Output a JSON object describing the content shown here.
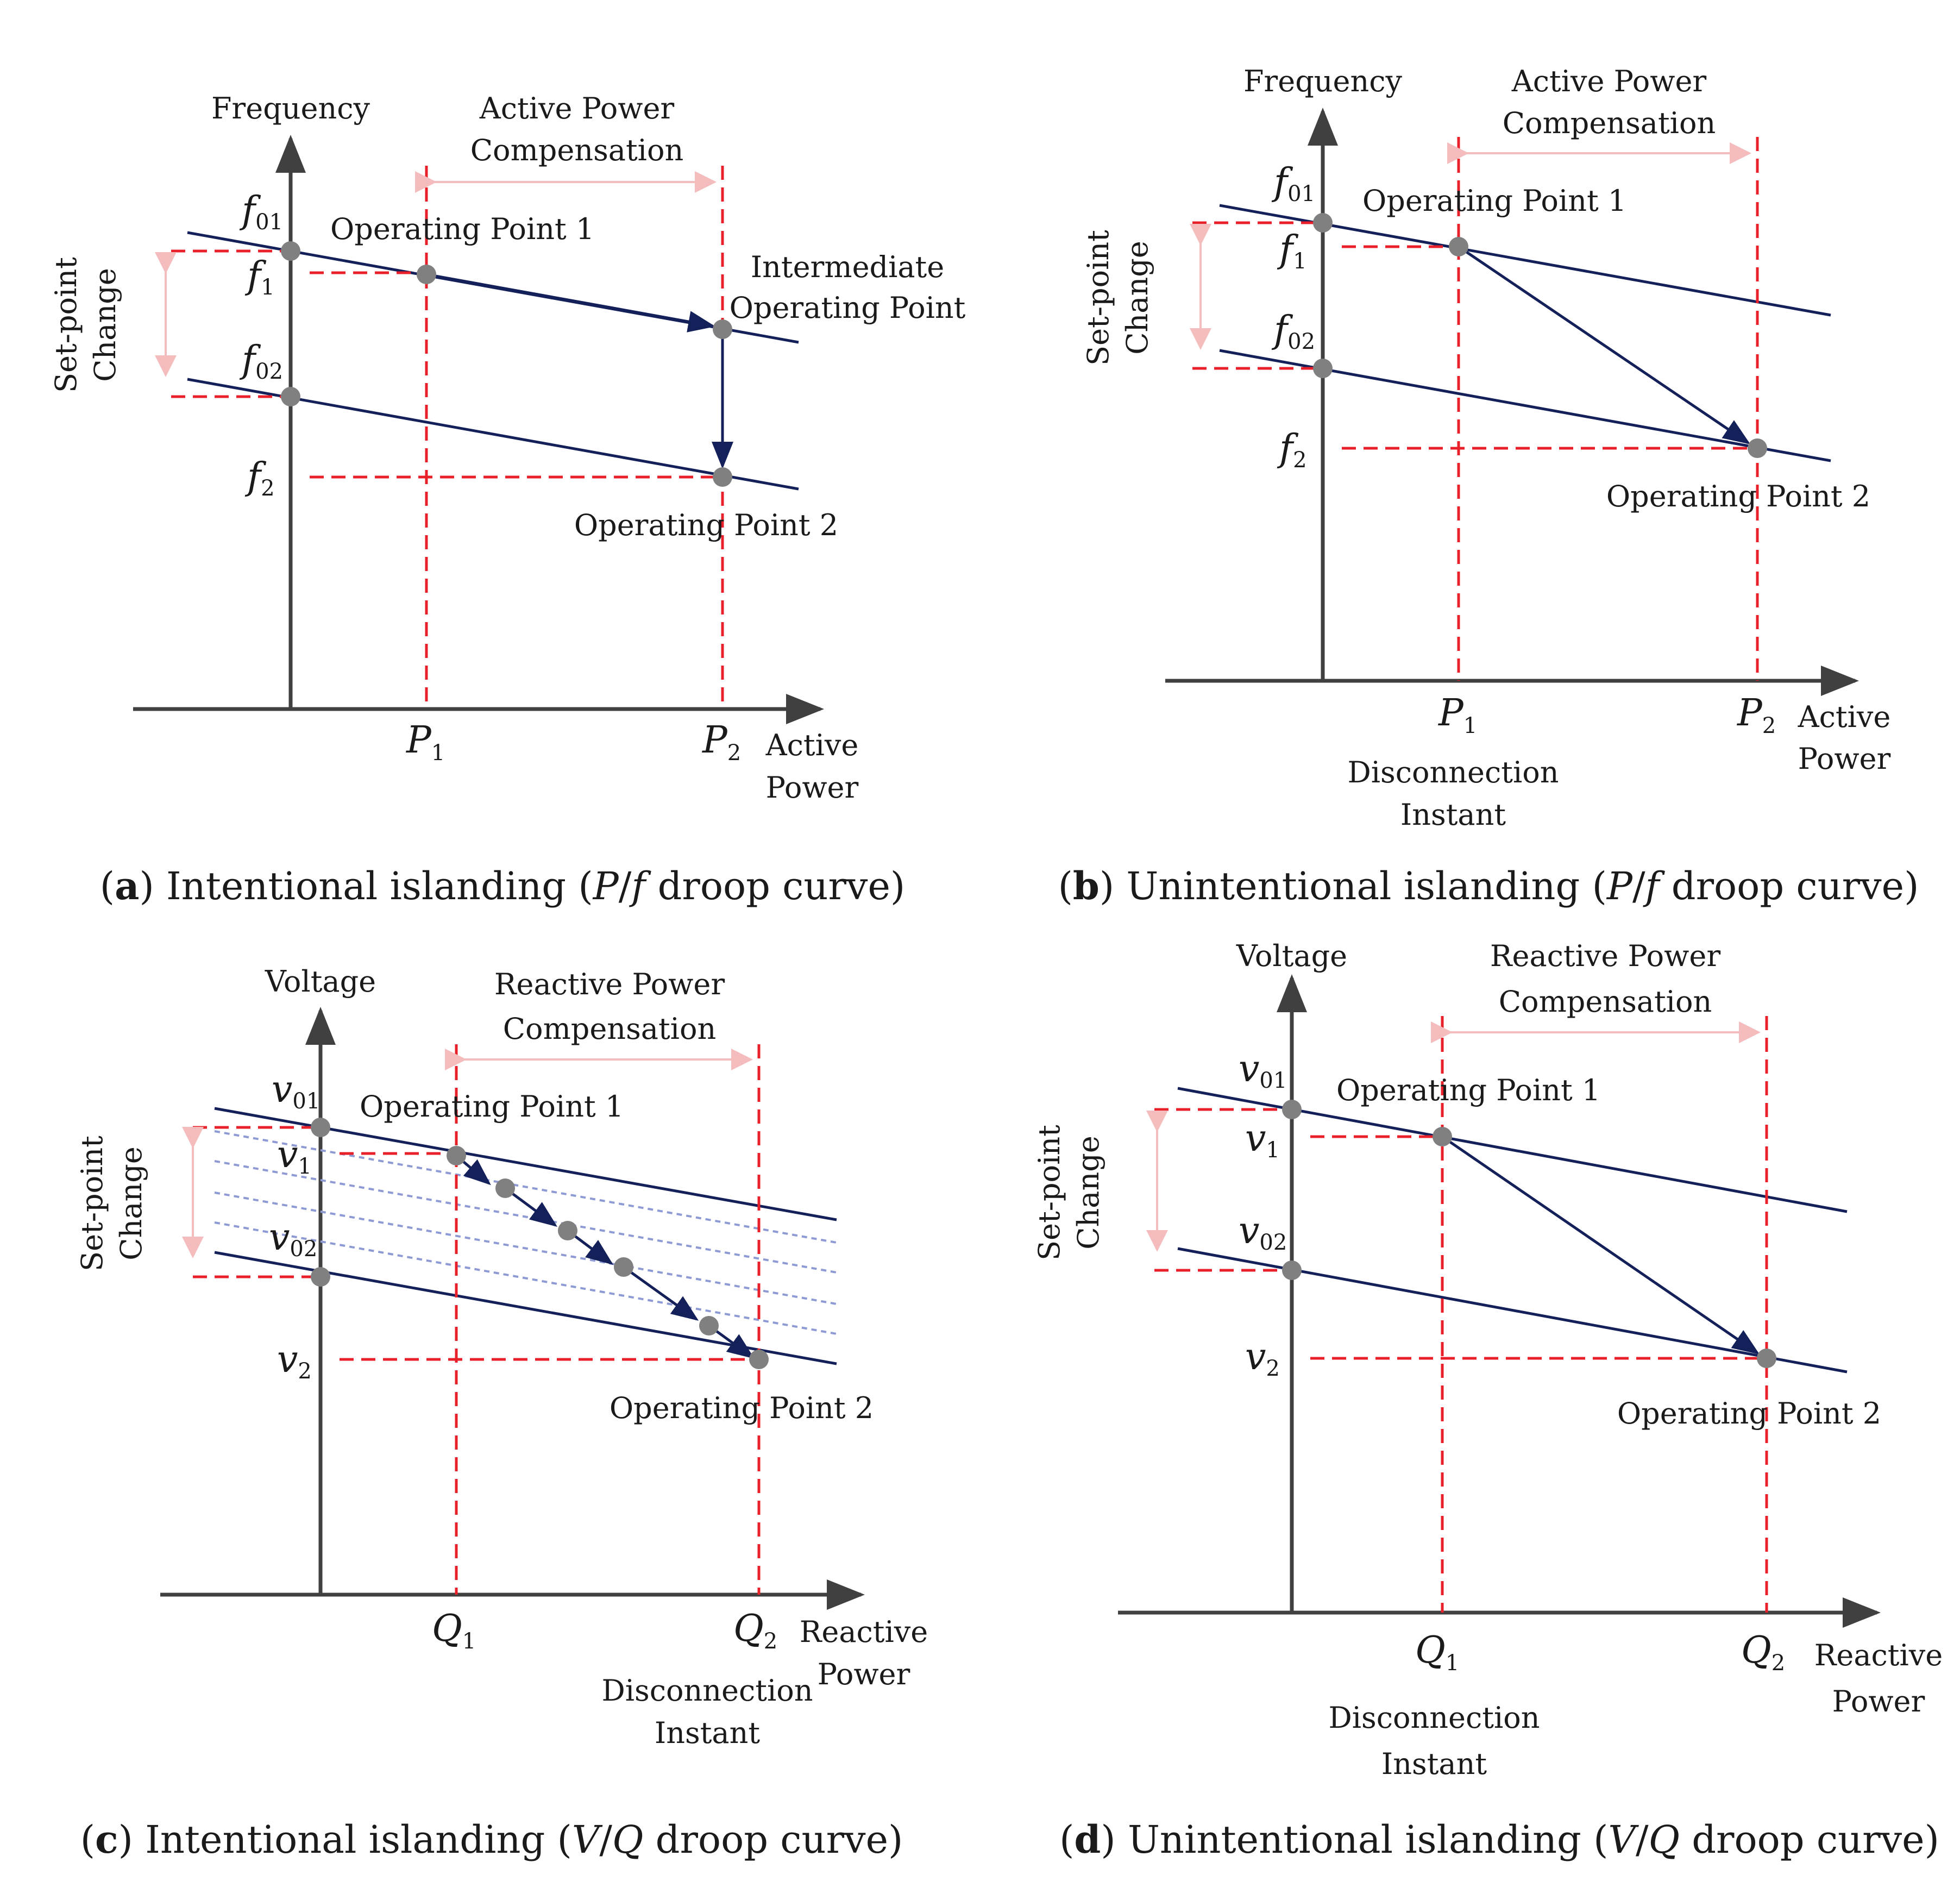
{
  "common": {
    "setpoint_label_1": "Set-point",
    "setpoint_label_2": "Change",
    "op1": "Operating Point 1",
    "op2": "Operating Point 2",
    "disconnection_1": "Disconnection",
    "disconnection_2": "Instant"
  },
  "panel_a": {
    "caption_letter": "a",
    "caption_text": "Intentional islanding",
    "caption_droop_x": "P",
    "caption_droop_y": "f",
    "caption_tail": "droop curve)",
    "y_axis": "Frequency",
    "x_axis_1": "Active",
    "x_axis_2": "Power",
    "comp_1": "Active Power",
    "comp_2": "Compensation",
    "intermediate_1": "Intermediate",
    "intermediate_2": "Operating Point",
    "f01_sub": "01",
    "f1_sub": "1",
    "f02_sub": "02",
    "f2_sub": "2",
    "P1_sub": "1",
    "P2_sub": "2"
  },
  "panel_b": {
    "caption_letter": "b",
    "caption_text": "Unintentional islanding",
    "caption_droop_x": "P",
    "caption_droop_y": "f",
    "caption_tail": "droop curve)",
    "y_axis": "Frequency",
    "x_axis_1": "Active",
    "x_axis_2": "Power",
    "comp_1": "Active Power",
    "comp_2": "Compensation",
    "f01_sub": "01",
    "f1_sub": "1",
    "f02_sub": "02",
    "f2_sub": "2",
    "P1_sub": "1",
    "P2_sub": "2"
  },
  "panel_c": {
    "caption_letter": "c",
    "caption_text": "Intentional islanding",
    "caption_droop_x": "V",
    "caption_droop_y": "Q",
    "caption_tail": "droop curve)",
    "y_axis": "Voltage",
    "x_axis_1": "Reactive",
    "x_axis_2": "Power",
    "comp_1": "Reactive Power",
    "comp_2": "Compensation",
    "v01_sub": "01",
    "v1_sub": "1",
    "v02_sub": "02",
    "v2_sub": "2",
    "Q1_sub": "1",
    "Q2_sub": "2"
  },
  "panel_d": {
    "caption_letter": "d",
    "caption_text": "Unintentional islanding",
    "caption_droop_x": "V",
    "caption_droop_y": "Q",
    "caption_tail": "droop curve)",
    "y_axis": "Voltage",
    "x_axis_1": "Reactive",
    "x_axis_2": "Power",
    "comp_1": "Reactive Power",
    "comp_2": "Compensation",
    "v01_sub": "01",
    "v1_sub": "1",
    "v02_sub": "02",
    "v2_sub": "2",
    "Q1_sub": "1",
    "Q2_sub": "2"
  }
}
